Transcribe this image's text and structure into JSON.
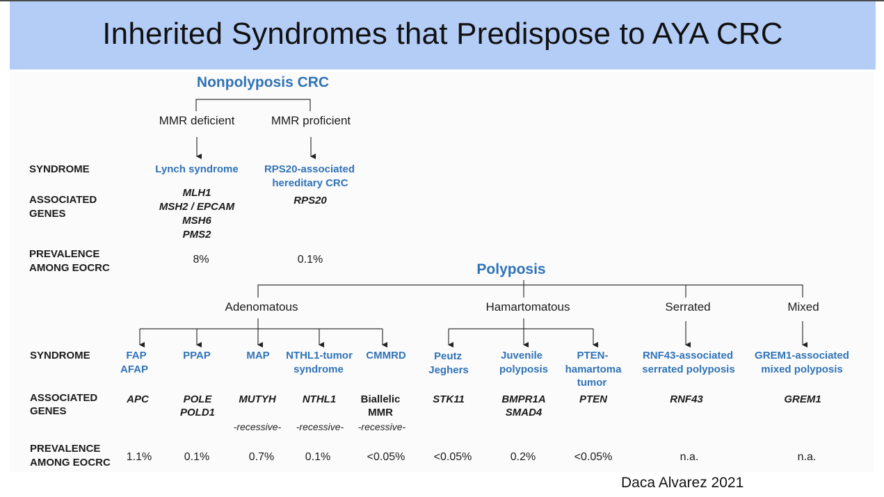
{
  "title": "Inherited Syndromes that Predispose to AYA CRC",
  "citation": "Daca Alvarez 2021",
  "row_labels": {
    "syndrome": "SYNDROME",
    "genes_1": "ASSOCIATED",
    "genes_2": "GENES",
    "prev_1": "PREVALENCE",
    "prev_2": "AMONG EOCRC"
  },
  "nonpolyposis": {
    "header": "Nonpolyposis CRC",
    "mmr_deficient": "MMR deficient",
    "mmr_proficient": "MMR proficient",
    "lynch": {
      "name": "Lynch syndrome",
      "genes": [
        "MLH1",
        "MSH2 / EPCAM",
        "MSH6",
        "PMS2"
      ],
      "prevalence": "8%"
    },
    "rps20": {
      "name_1": "RPS20-associated",
      "name_2": "hereditary CRC",
      "gene": "RPS20",
      "prevalence": "0.1%"
    }
  },
  "polyposis": {
    "header": "Polyposis",
    "categories": {
      "adenomatous": "Adenomatous",
      "hamartomatous": "Hamartomatous",
      "serrated": "Serrated",
      "mixed": "Mixed"
    },
    "syndromes": {
      "fap": {
        "name_1": "FAP",
        "name_2": "AFAP",
        "gene": "APC",
        "prevalence": "1.1%"
      },
      "ppap": {
        "name_1": "PPAP",
        "gene_1": "POLE",
        "gene_2": "POLD1",
        "prevalence": "0.1%"
      },
      "map": {
        "name_1": "MAP",
        "gene": "MUTYH",
        "note": "-recessive-",
        "prevalence": "0.7%"
      },
      "nthl1": {
        "name_1": "NTHL1-tumor",
        "name_2": "syndrome",
        "gene": "NTHL1",
        "note": "-recessive-",
        "prevalence": "0.1%"
      },
      "cmmrd": {
        "name_1": "CMMRD",
        "gene_1": "Biallelic",
        "gene_2": "MMR",
        "note": "-recessive-",
        "prevalence": "<0.05%"
      },
      "peutz": {
        "name_1": "Peutz",
        "name_2": "Jeghers",
        "gene": "STK11",
        "prevalence": "<0.05%"
      },
      "juvenile": {
        "name_1": "Juvenile",
        "name_2": "polyposis",
        "gene_1": "BMPR1A",
        "gene_2": "SMAD4",
        "prevalence": "0.2%"
      },
      "pten": {
        "name_1": "PTEN-",
        "name_2": "hamartoma",
        "name_3": "tumor",
        "gene": "PTEN",
        "prevalence": "<0.05%"
      },
      "rnf43": {
        "name_1": "RNF43-associated",
        "name_2": "serrated polyposis",
        "gene": "RNF43",
        "prevalence": "n.a."
      },
      "grem1": {
        "name_1": "GREM1-associated",
        "name_2": "mixed polyposis",
        "gene": "GREM1",
        "prevalence": "n.a."
      }
    }
  },
  "colors": {
    "header_band": "#b4cdf7",
    "syndrome_blue": "#2f73b7"
  }
}
